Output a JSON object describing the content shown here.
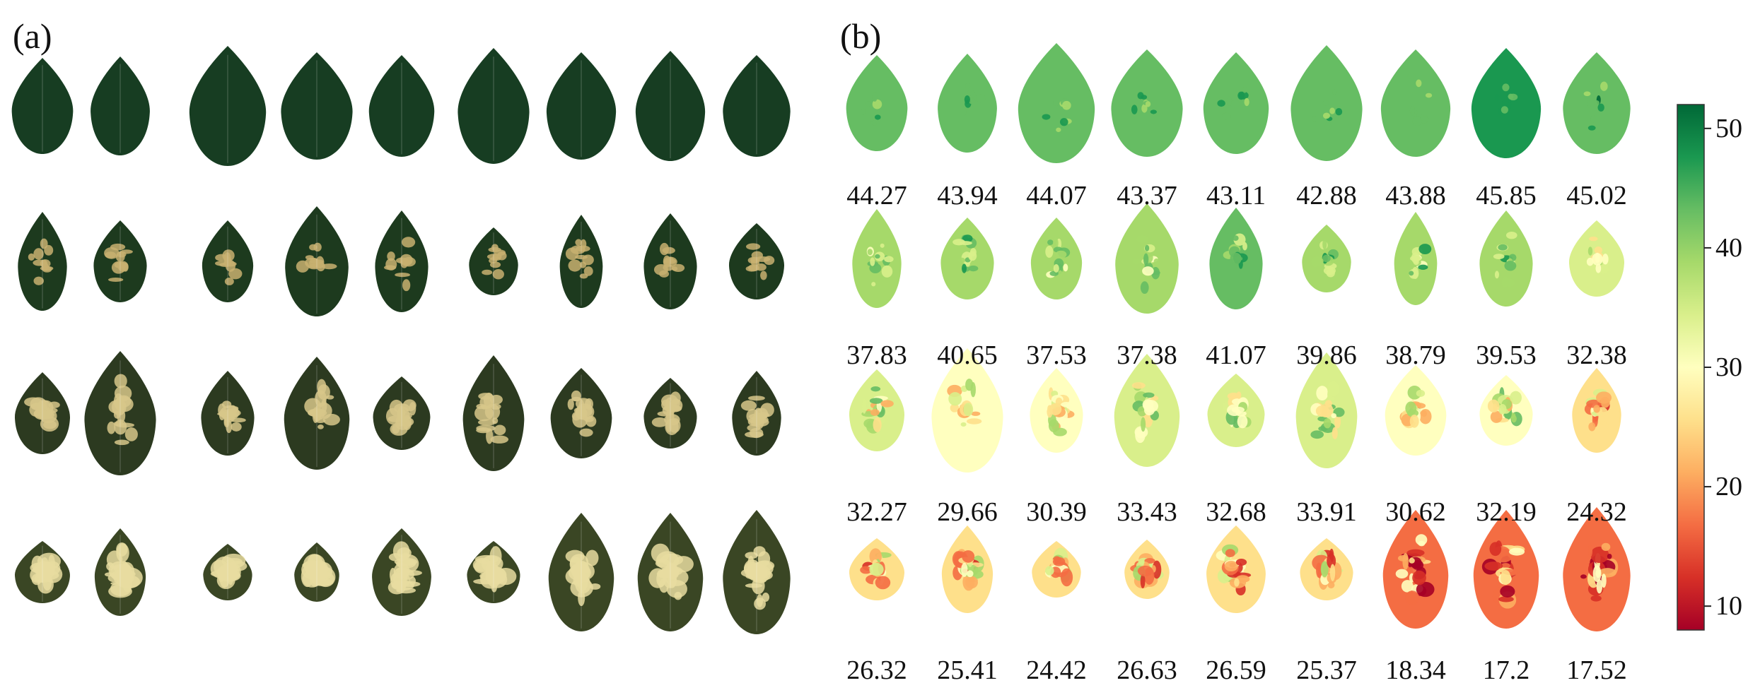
{
  "panel_a_label": "(a)",
  "panel_b_label": "(b)",
  "colorbar": {
    "min": 8,
    "max": 52,
    "ticks": [
      "50",
      "40",
      "30",
      "20",
      "10"
    ],
    "tick_values": [
      50,
      40,
      30,
      20,
      10
    ],
    "colors": [
      "#006837",
      "#1a9850",
      "#66bd63",
      "#a6d96a",
      "#d9ef8b",
      "#ffffbf",
      "#fee08b",
      "#fdae61",
      "#f46d43",
      "#d73027",
      "#a50026"
    ]
  },
  "rows": [
    {
      "values": [
        "44.27",
        "43.94",
        "44.07",
        "43.37",
        "43.11",
        "42.88",
        "43.88",
        "45.85",
        "45.02"
      ]
    },
    {
      "values": [
        "37.83",
        "40.65",
        "37.53",
        "37.38",
        "41.07",
        "39.86",
        "38.79",
        "39.53",
        "32.38"
      ]
    },
    {
      "values": [
        "32.27",
        "29.66",
        "30.39",
        "33.43",
        "32.68",
        "33.91",
        "30.62",
        "32.19",
        "24.32"
      ]
    },
    {
      "values": [
        "26.32",
        "25.41",
        "24.42",
        "26.63",
        "26.59",
        "25.37",
        "18.34",
        "17.2",
        "17.52"
      ]
    }
  ]
}
